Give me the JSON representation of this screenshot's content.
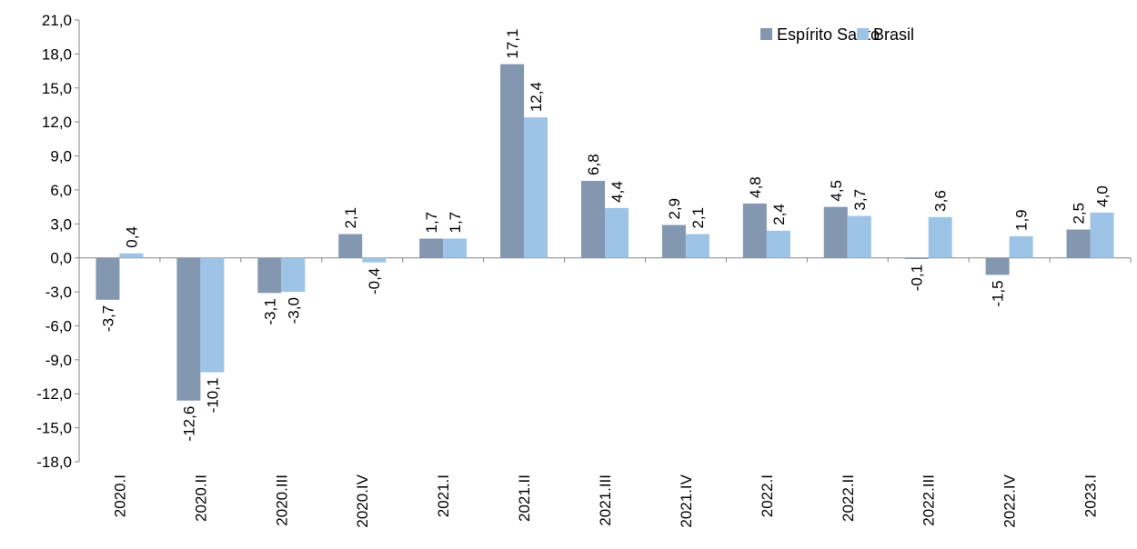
{
  "chart_data": {
    "type": "bar",
    "title": "",
    "xlabel": "",
    "ylabel": "",
    "ylim": [
      -18,
      21
    ],
    "yticks": [
      "21,0",
      "18,0",
      "15,0",
      "12,0",
      "9,0",
      "6,0",
      "3,0",
      "0,0",
      "-3,0",
      "-6,0",
      "-9,0",
      "-12,0",
      "-15,0",
      "-18,0"
    ],
    "ytick_values": [
      21,
      18,
      15,
      12,
      9,
      6,
      3,
      0,
      -3,
      -6,
      -9,
      -12,
      -15,
      -18
    ],
    "grid": false,
    "legend_position": "top-right",
    "categories": [
      "2020.I",
      "2020.II",
      "2020.III",
      "2020.IV",
      "2021.I",
      "2021.II",
      "2021.III",
      "2021.IV",
      "2022.I",
      "2022.II",
      "2022.III",
      "2022.IV",
      "2023.I"
    ],
    "series": [
      {
        "name": "Espírito Santo",
        "color": "#8497b0",
        "values": [
          -3.7,
          -12.6,
          -3.1,
          2.1,
          1.7,
          17.1,
          6.8,
          2.9,
          4.8,
          4.5,
          -0.1,
          -1.5,
          2.5
        ],
        "labels": [
          "-3,7",
          "-12,6",
          "-3,1",
          "2,1",
          "1,7",
          "17,1",
          "6,8",
          "2,9",
          "4,8",
          "4,5",
          "-0,1",
          "-1,5",
          "2,5"
        ]
      },
      {
        "name": "Brasil",
        "color": "#9dc3e6",
        "values": [
          0.4,
          -10.1,
          -3.0,
          -0.4,
          1.7,
          12.4,
          4.4,
          2.1,
          2.4,
          3.7,
          3.6,
          1.9,
          4.0
        ],
        "labels": [
          "0,4",
          "-10,1",
          "-3,0",
          "-0,4",
          "1,7",
          "12,4",
          "4,4",
          "2,1",
          "2,4",
          "3,7",
          "3,6",
          "1,9",
          "4,0"
        ]
      }
    ]
  }
}
